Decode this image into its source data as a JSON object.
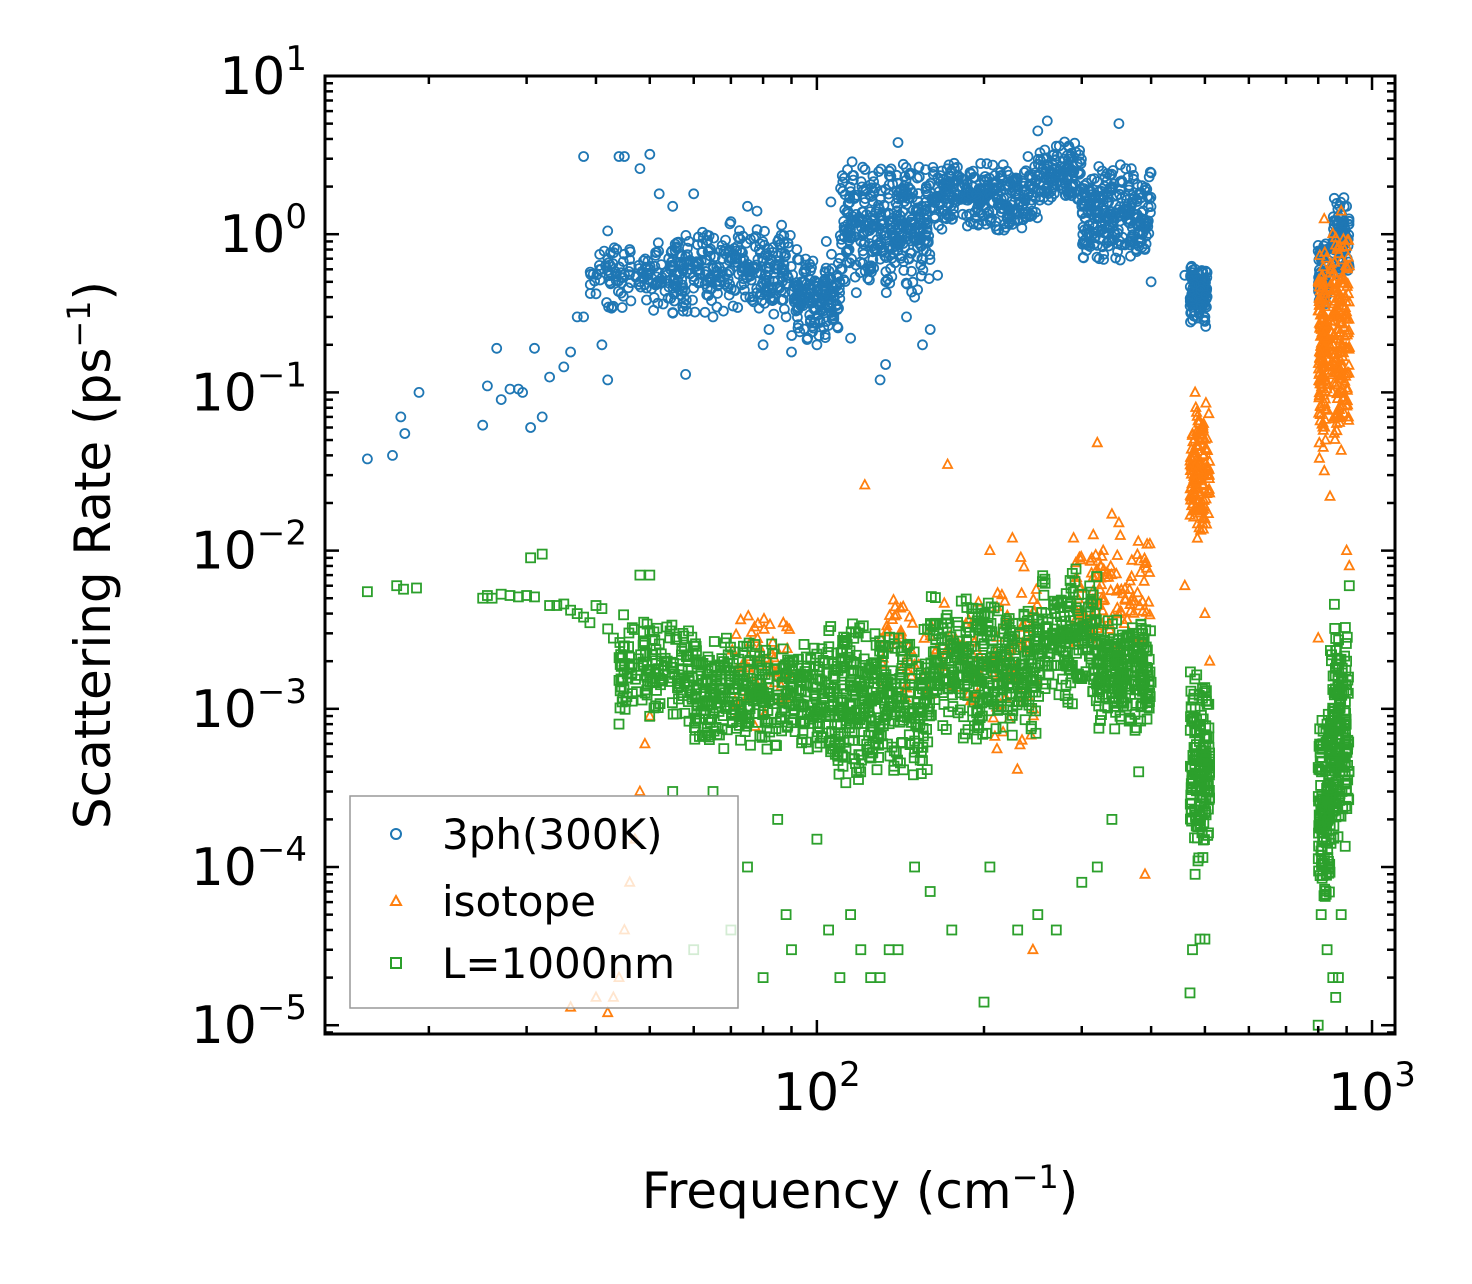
{
  "chart_data": {
    "type": "scatter",
    "title": "",
    "xlabel": "Frequency (cm",
    "xlabel_sup": "−1",
    "xlabel_tail": ")",
    "ylabel": "Scattering Rate (ps",
    "ylabel_sup": "−1",
    "ylabel_tail": ")",
    "xscale": "log",
    "yscale": "log",
    "xlim": [
      13,
      1100
    ],
    "ylim": [
      8.8e-06,
      10
    ],
    "x_ticks": [
      {
        "value": 100,
        "base": "10",
        "exp": "2"
      },
      {
        "value": 1000,
        "base": "10",
        "exp": "3"
      }
    ],
    "y_ticks": [
      {
        "value": 10,
        "base": "10",
        "exp": "1"
      },
      {
        "value": 1,
        "base": "10",
        "exp": "0"
      },
      {
        "value": 0.1,
        "base": "10",
        "exp": "−1"
      },
      {
        "value": 0.01,
        "base": "10",
        "exp": "−2"
      },
      {
        "value": 0.001,
        "base": "10",
        "exp": "−3"
      },
      {
        "value": 0.0001,
        "base": "10",
        "exp": "−4"
      },
      {
        "value": 1e-05,
        "base": "10",
        "exp": "−5"
      }
    ],
    "legend_position": "lower-left",
    "series": [
      {
        "name": "3ph(300K)",
        "marker": "circle",
        "color": "#1f77b4",
        "points": [
          [
            15.5,
            0.038
          ],
          [
            17.2,
            0.04
          ],
          [
            17.8,
            0.07
          ],
          [
            18.1,
            0.055
          ],
          [
            19.2,
            0.1
          ],
          [
            25,
            0.062
          ],
          [
            25.5,
            0.11
          ],
          [
            26.5,
            0.19
          ],
          [
            27,
            0.09
          ],
          [
            28,
            0.105
          ],
          [
            29,
            0.105
          ],
          [
            29.5,
            0.1
          ],
          [
            30.5,
            0.06
          ],
          [
            31,
            0.19
          ],
          [
            32,
            0.07
          ],
          [
            33,
            0.125
          ],
          [
            35,
            0.145
          ],
          [
            36,
            0.18
          ],
          [
            37,
            0.3
          ],
          [
            38,
            0.3
          ],
          [
            38,
            3.1
          ],
          [
            40,
            0.42
          ],
          [
            41,
            0.2
          ],
          [
            42,
            1.05
          ],
          [
            42,
            0.12
          ],
          [
            43,
            0.35
          ],
          [
            44,
            3.1
          ],
          [
            45,
            3.1
          ],
          [
            46,
            0.8
          ],
          [
            48,
            0.5
          ],
          [
            48,
            2.6
          ],
          [
            50,
            0.6
          ],
          [
            50,
            3.2
          ],
          [
            52,
            1.8
          ],
          [
            55,
            1.5
          ],
          [
            55,
            0.32
          ],
          [
            58,
            0.13
          ],
          [
            60,
            1.8
          ],
          [
            65,
            0.3
          ],
          [
            70,
            1.2
          ],
          [
            75,
            1.5
          ],
          [
            78,
            1.4
          ],
          [
            80,
            0.2
          ],
          [
            82,
            0.25
          ],
          [
            85,
            0.9
          ],
          [
            88,
            0.3
          ],
          [
            90,
            0.18
          ],
          [
            92,
            0.8
          ],
          [
            95,
            0.5
          ],
          [
            100,
            0.2
          ],
          [
            104,
            0.9
          ],
          [
            106,
            1.6
          ],
          [
            110,
            0.5
          ],
          [
            115,
            0.22
          ],
          [
            120,
            0.9
          ],
          [
            125,
            0.6
          ],
          [
            130,
            0.12
          ],
          [
            133,
            0.15
          ],
          [
            135,
            2.5
          ],
          [
            140,
            3.8
          ],
          [
            145,
            0.3
          ],
          [
            150,
            0.4
          ],
          [
            155,
            0.2
          ],
          [
            160,
            0.25
          ],
          [
            165,
            0.55
          ],
          [
            170,
            1.9
          ],
          [
            180,
            2.3
          ],
          [
            190,
            1.8
          ],
          [
            200,
            2.2
          ],
          [
            210,
            1.2
          ],
          [
            220,
            2.5
          ],
          [
            230,
            2.0
          ],
          [
            240,
            3.1
          ],
          [
            250,
            4.5
          ],
          [
            260,
            5.2
          ],
          [
            270,
            3.6
          ],
          [
            280,
            2.7
          ],
          [
            290,
            2.0
          ],
          [
            300,
            1.5
          ],
          [
            310,
            1.0
          ],
          [
            320,
            0.85
          ],
          [
            330,
            1.2
          ],
          [
            340,
            2.0
          ],
          [
            350,
            5.0
          ],
          [
            360,
            2.6
          ],
          [
            370,
            1.1
          ],
          [
            380,
            1.8
          ],
          [
            390,
            0.8
          ],
          [
            400,
            0.5
          ],
          [
            460,
            0.55
          ],
          [
            480,
            0.6
          ],
          [
            500,
            0.3
          ],
          [
            800,
            0.85
          ],
          [
            820,
            0.25
          ],
          [
            850,
            0.6
          ],
          [
            870,
            1.3
          ],
          [
            890,
            1.7
          ],
          [
            900,
            1.5
          ]
        ],
        "clusters": [
          {
            "x": [
              39,
              55
            ],
            "y": [
              0.3,
              1.0
            ],
            "n": 120
          },
          {
            "x": [
              55,
              90
            ],
            "y": [
              0.3,
              1.2
            ],
            "n": 300
          },
          {
            "x": [
              90,
              110
            ],
            "y": [
              0.2,
              0.8
            ],
            "n": 160
          },
          {
            "x": [
              110,
              160
            ],
            "y": [
              0.4,
              3.0
            ],
            "n": 360
          },
          {
            "x": [
              160,
              250
            ],
            "y": [
              1.0,
              3.0
            ],
            "n": 300
          },
          {
            "x": [
              250,
              300
            ],
            "y": [
              1.5,
              4.0
            ],
            "n": 120
          },
          {
            "x": [
              300,
              400
            ],
            "y": [
              0.6,
              3.0
            ],
            "n": 260
          },
          {
            "x": [
              470,
              505
            ],
            "y": [
              0.25,
              0.7
            ],
            "n": 120
          },
          {
            "x": [
              800,
              830
            ],
            "y": [
              0.3,
              1.0
            ],
            "n": 60
          },
          {
            "x": [
              850,
              910
            ],
            "y": [
              0.5,
              1.8
            ],
            "n": 100
          }
        ]
      },
      {
        "name": "isotope",
        "marker": "triangle",
        "color": "#ff7f0e",
        "points": [
          [
            36,
            1.3e-05
          ],
          [
            40,
            1.5e-05
          ],
          [
            42,
            1.2e-05
          ],
          [
            43,
            1.5e-05
          ],
          [
            44,
            2e-05
          ],
          [
            45,
            4e-05
          ],
          [
            46,
            8e-05
          ],
          [
            47,
            0.00015
          ],
          [
            48,
            0.0003
          ],
          [
            49,
            0.0006
          ],
          [
            50,
            0.0009
          ],
          [
            122,
            0.026
          ],
          [
            172,
            0.035
          ],
          [
            205,
            0.01
          ],
          [
            225,
            0.012
          ],
          [
            245,
            3e-05
          ],
          [
            290,
            0.012
          ],
          [
            320,
            0.048
          ],
          [
            340,
            0.017
          ],
          [
            350,
            0.015
          ],
          [
            390,
            9e-05
          ],
          [
            460,
            0.006
          ],
          [
            480,
            0.1
          ],
          [
            500,
            0.004
          ],
          [
            510,
            0.002
          ],
          [
            800,
            0.0028
          ],
          [
            820,
            1.25
          ],
          [
            840,
            0.022
          ],
          [
            860,
            0.95
          ],
          [
            880,
            1.4
          ],
          [
            900,
            0.01
          ],
          [
            910,
            0.008
          ]
        ],
        "clusters": [
          {
            "x": [
              70,
              90
            ],
            "y": [
              0.0007,
              0.004
            ],
            "n": 60
          },
          {
            "x": [
              130,
              200
            ],
            "y": [
              0.001,
              0.006
            ],
            "n": 80
          },
          {
            "x": [
              205,
              250
            ],
            "y": [
              0.0004,
              0.01
            ],
            "n": 60
          },
          {
            "x": [
              290,
              400
            ],
            "y": [
              0.002,
              0.015
            ],
            "n": 120
          },
          {
            "x": [
              470,
              510
            ],
            "y": [
              0.01,
              0.09
            ],
            "n": 140
          },
          {
            "x": [
              800,
              830
            ],
            "y": [
              0.03,
              1.0
            ],
            "n": 140
          },
          {
            "x": [
              840,
              910
            ],
            "y": [
              0.04,
              1.2
            ],
            "n": 180
          }
        ]
      },
      {
        "name": "L=1000nm",
        "marker": "square",
        "color": "#2ca02c",
        "points": [
          [
            15.5,
            0.0055
          ],
          [
            17.5,
            0.006
          ],
          [
            18,
            0.0057
          ],
          [
            19,
            0.0058
          ],
          [
            25,
            0.005
          ],
          [
            25.5,
            0.0052
          ],
          [
            26,
            0.005
          ],
          [
            27,
            0.0053
          ],
          [
            28,
            0.0052
          ],
          [
            29,
            0.0051
          ],
          [
            30,
            0.0052
          ],
          [
            30.5,
            0.009
          ],
          [
            31,
            0.0051
          ],
          [
            32,
            0.0095
          ],
          [
            33,
            0.0045
          ],
          [
            34,
            0.0045
          ],
          [
            35,
            0.0046
          ],
          [
            36,
            0.0042
          ],
          [
            37,
            0.004
          ],
          [
            38,
            0.0038
          ],
          [
            39,
            0.0035
          ],
          [
            40,
            0.0045
          ],
          [
            41,
            0.0043
          ],
          [
            42,
            0.0032
          ],
          [
            43,
            0.0028
          ],
          [
            44,
            0.0008
          ],
          [
            45,
            0.0025
          ],
          [
            48,
            0.007
          ],
          [
            50,
            0.007
          ],
          [
            55,
            0.0003
          ],
          [
            60,
            3e-05
          ],
          [
            65,
            0.0003
          ],
          [
            70,
            4e-05
          ],
          [
            75,
            0.0001
          ],
          [
            80,
            2e-05
          ],
          [
            85,
            0.0002
          ],
          [
            88,
            5e-05
          ],
          [
            90,
            3e-05
          ],
          [
            100,
            0.00015
          ],
          [
            105,
            4e-05
          ],
          [
            110,
            2e-05
          ],
          [
            115,
            5e-05
          ],
          [
            120,
            3e-05
          ],
          [
            125,
            2e-05
          ],
          [
            130,
            2e-05
          ],
          [
            135,
            3e-05
          ],
          [
            140,
            3e-05
          ],
          [
            150,
            0.0001
          ],
          [
            160,
            7e-05
          ],
          [
            175,
            4e-05
          ],
          [
            200,
            1.4e-05
          ],
          [
            205,
            0.0001
          ],
          [
            230,
            4e-05
          ],
          [
            250,
            5e-05
          ],
          [
            270,
            4e-05
          ],
          [
            300,
            8e-05
          ],
          [
            320,
            0.0001
          ],
          [
            340,
            0.0002
          ],
          [
            380,
            0.0004
          ],
          [
            470,
            1.6e-05
          ],
          [
            475,
            3e-05
          ],
          [
            480,
            9e-05
          ],
          [
            490,
            3.5e-05
          ],
          [
            500,
            3.5e-05
          ],
          [
            800,
            1e-05
          ],
          [
            810,
            5e-05
          ],
          [
            830,
            3e-05
          ],
          [
            850,
            2e-05
          ],
          [
            860,
            1.5e-05
          ],
          [
            870,
            2e-05
          ],
          [
            880,
            5e-05
          ],
          [
            900,
            0.002
          ],
          [
            910,
            0.006
          ]
        ],
        "clusters": [
          {
            "x": [
              44,
              60
            ],
            "y": [
              0.0008,
              0.004
            ],
            "n": 160
          },
          {
            "x": [
              60,
              100
            ],
            "y": [
              0.0005,
              0.003
            ],
            "n": 360
          },
          {
            "x": [
              100,
              160
            ],
            "y": [
              0.0003,
              0.004
            ],
            "n": 420
          },
          {
            "x": [
              160,
              250
            ],
            "y": [
              0.0006,
              0.006
            ],
            "n": 360
          },
          {
            "x": [
              250,
              320
            ],
            "y": [
              0.001,
              0.008
            ],
            "n": 200
          },
          {
            "x": [
              320,
              400
            ],
            "y": [
              0.0007,
              0.004
            ],
            "n": 240
          },
          {
            "x": [
              470,
              510
            ],
            "y": [
              0.0001,
              0.002
            ],
            "n": 160
          },
          {
            "x": [
              800,
              840
            ],
            "y": [
              5e-05,
              0.001
            ],
            "n": 120
          },
          {
            "x": [
              840,
              910
            ],
            "y": [
              0.0001,
              0.005
            ],
            "n": 180
          }
        ]
      }
    ]
  }
}
